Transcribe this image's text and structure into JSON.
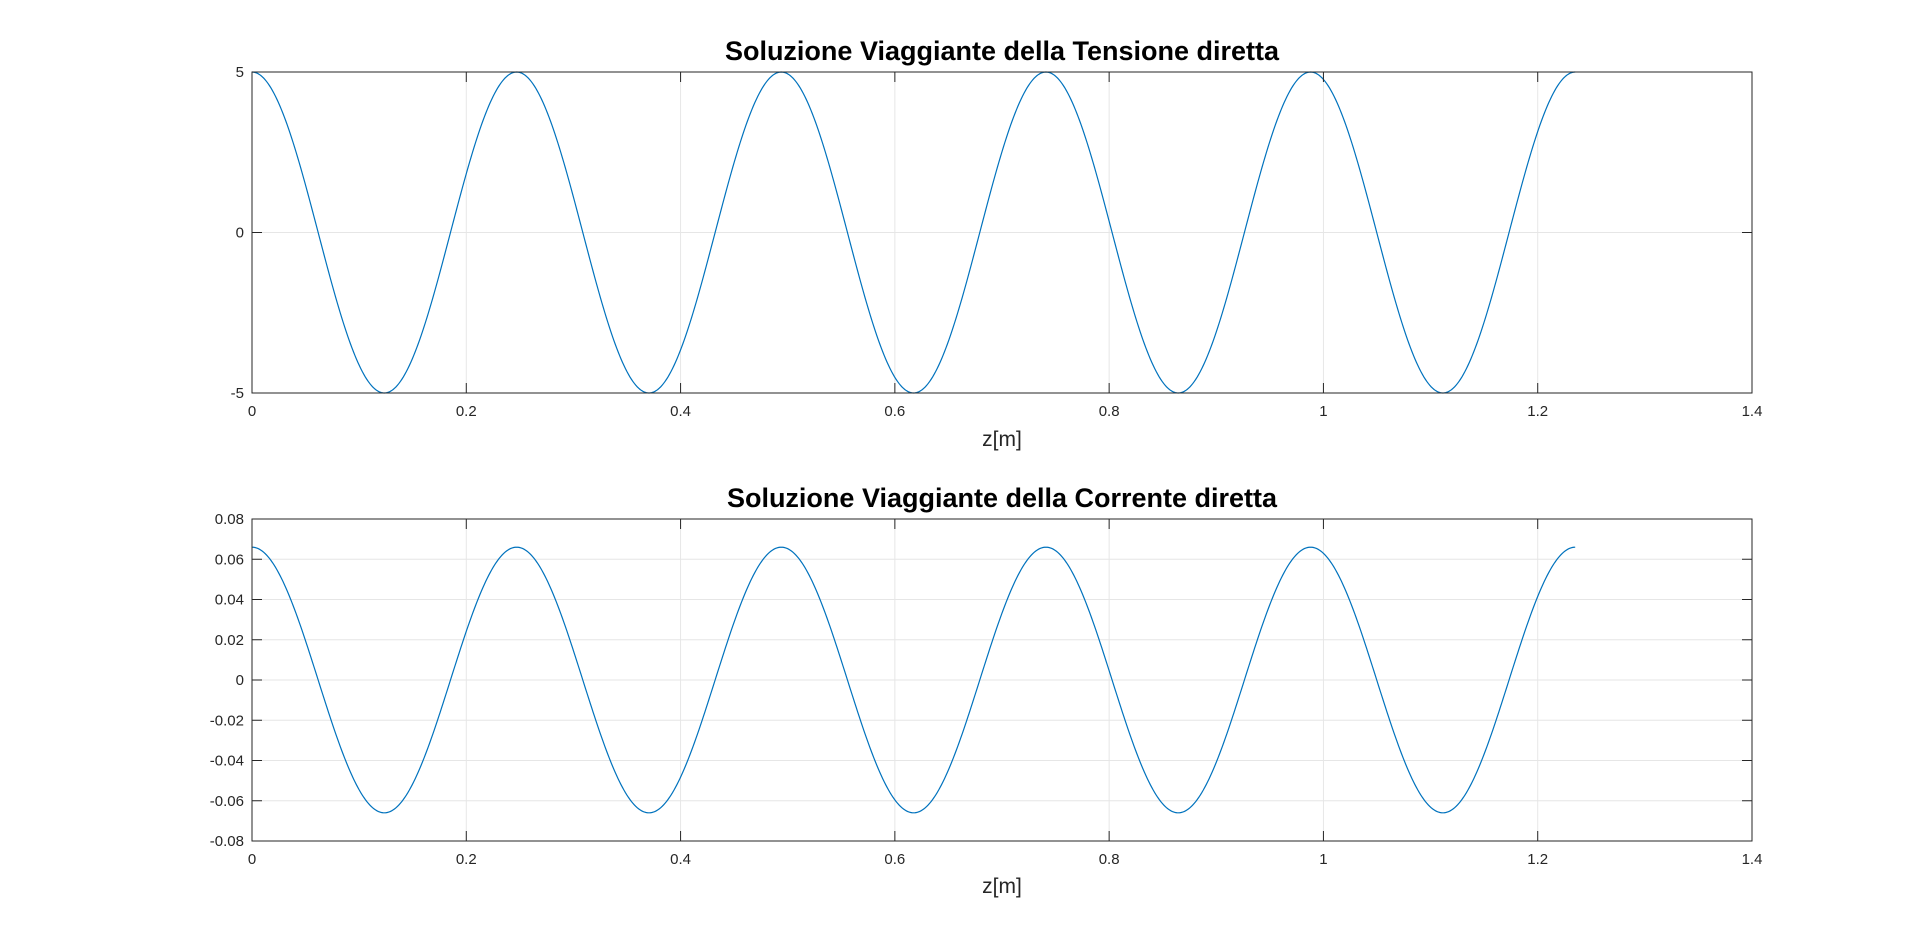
{
  "chart_data": [
    {
      "type": "line",
      "title": "Soluzione Viaggiante della Tensione diretta",
      "xlabel": "z[m]",
      "ylabel": "",
      "xlim": [
        0,
        1.4
      ],
      "ylim": [
        -5,
        5
      ],
      "xticks": [
        "0",
        "0.2",
        "0.4",
        "0.6",
        "0.8",
        "1",
        "1.2",
        "1.4"
      ],
      "yticks": [
        "-5",
        "0",
        "5"
      ],
      "grid": true,
      "series": [
        {
          "function": "amplitude*cos(2*pi*z/wavelength)",
          "amplitude": 5,
          "wavelength": 0.247,
          "x_range": [
            0,
            1.235
          ],
          "color": "#0072BD"
        }
      ]
    },
    {
      "type": "line",
      "title": "Soluzione Viaggiante della Corrente diretta",
      "xlabel": "z[m]",
      "ylabel": "",
      "xlim": [
        0,
        1.4
      ],
      "ylim": [
        -0.08,
        0.08
      ],
      "xticks": [
        "0",
        "0.2",
        "0.4",
        "0.6",
        "0.8",
        "1",
        "1.2",
        "1.4"
      ],
      "yticks": [
        "-0.08",
        "-0.06",
        "-0.04",
        "-0.02",
        "0",
        "0.02",
        "0.04",
        "0.06",
        "0.08"
      ],
      "grid": true,
      "series": [
        {
          "function": "amplitude*cos(2*pi*z/wavelength)",
          "amplitude": 0.066,
          "wavelength": 0.247,
          "x_range": [
            0,
            1.235
          ],
          "color": "#0072BD"
        }
      ]
    }
  ]
}
